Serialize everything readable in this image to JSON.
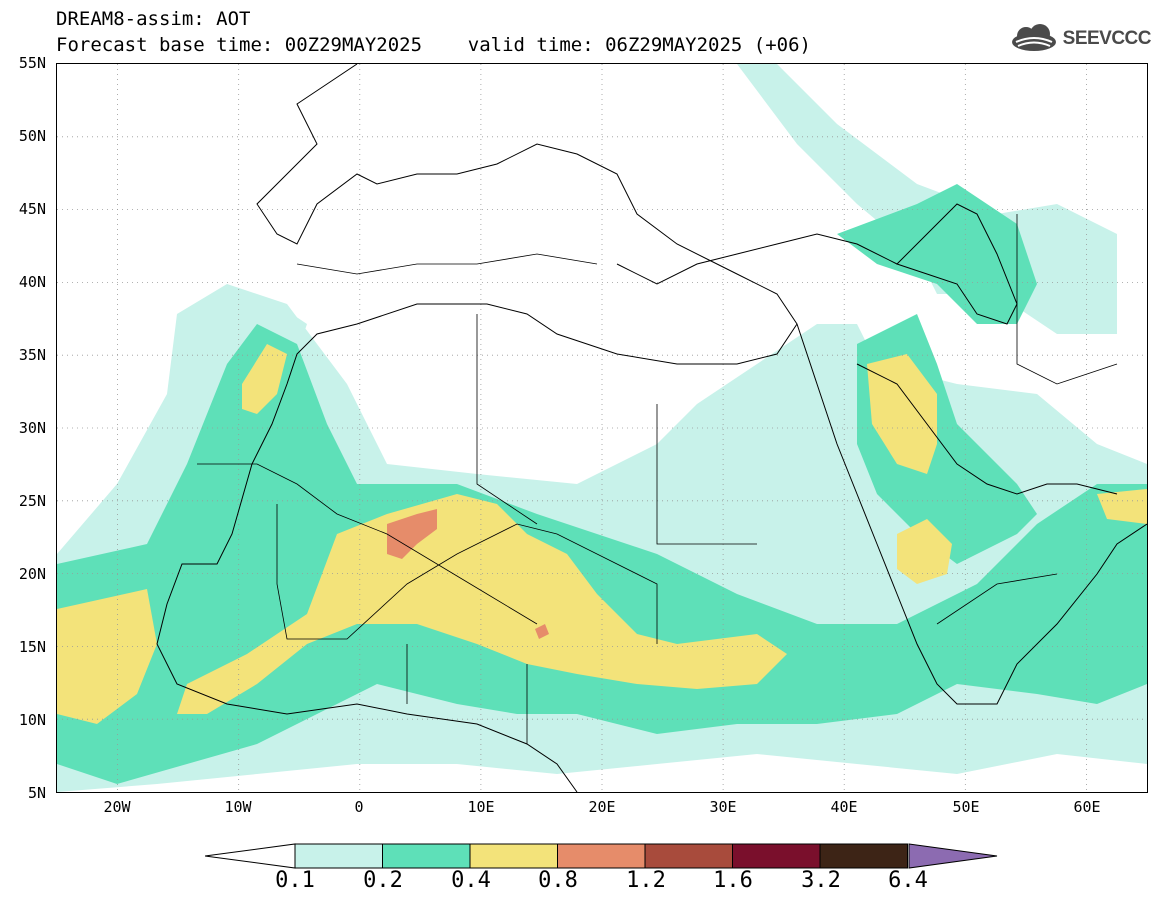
{
  "header": {
    "line1": "DREAM8-assim: AOT",
    "line2": "Forecast base time: 00Z29MAY2025    valid time: 06Z29MAY2025 (+06)"
  },
  "logo": {
    "name": "SEEVCCC",
    "icon": "cloud-logo-icon"
  },
  "map": {
    "lat_labels": [
      "55N",
      "50N",
      "45N",
      "40N",
      "35N",
      "30N",
      "25N",
      "20N",
      "15N",
      "10N",
      "5N"
    ],
    "lon_labels": [
      "20W",
      "10W",
      "0",
      "10E",
      "20E",
      "30E",
      "40E",
      "50E",
      "60E"
    ],
    "extent": {
      "lon": [
        -25,
        65
      ],
      "lat": [
        5,
        55
      ]
    },
    "grid": "dotted"
  },
  "colorbar": {
    "labels": [
      "0.1",
      "0.2",
      "0.4",
      "0.8",
      "1.2",
      "1.6",
      "3.2",
      "6.4"
    ],
    "colors": [
      "#c8f2ea",
      "#5ee0b8",
      "#f3e37a",
      "#e68c6a",
      "#a84b3c",
      "#7a0f2c",
      "#3d2416",
      "#8c6bb1"
    ],
    "below_color": "#ffffff"
  }
}
